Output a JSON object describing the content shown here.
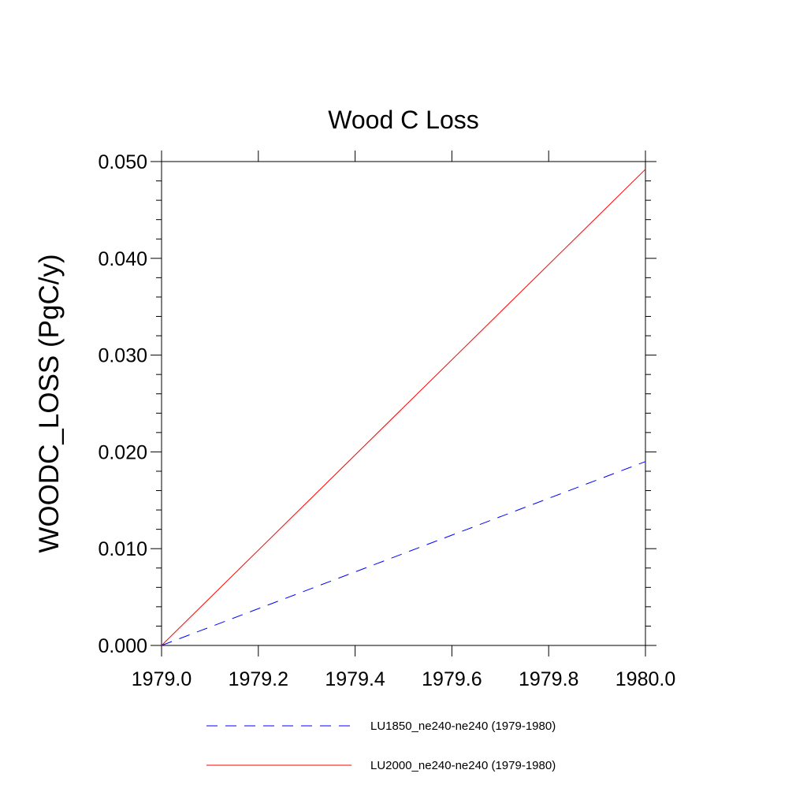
{
  "chart_data": {
    "type": "line",
    "title": "Wood C Loss",
    "xlabel": "",
    "ylabel": "WOODC_LOSS  (PgC/y)",
    "xlim": [
      1979.0,
      1980.0
    ],
    "ylim": [
      0.0,
      0.05
    ],
    "x_ticks": [
      "1979.0",
      "1979.2",
      "1979.4",
      "1979.6",
      "1979.8",
      "1980.0"
    ],
    "y_ticks": [
      "0.000",
      "0.010",
      "0.020",
      "0.030",
      "0.040",
      "0.050"
    ],
    "grid": false,
    "legend_position": "bottom",
    "series": [
      {
        "name": "LU1850_ne240-ne240 (1979-1980)",
        "color": "#0000ff",
        "style": "dashed",
        "x": [
          1979.0,
          1980.0
        ],
        "y": [
          0.0,
          0.019
        ]
      },
      {
        "name": "LU2000_ne240-ne240 (1979-1980)",
        "color": "#ff0000",
        "style": "solid",
        "x": [
          1979.0,
          1980.0
        ],
        "y": [
          0.0,
          0.0492
        ]
      }
    ]
  }
}
